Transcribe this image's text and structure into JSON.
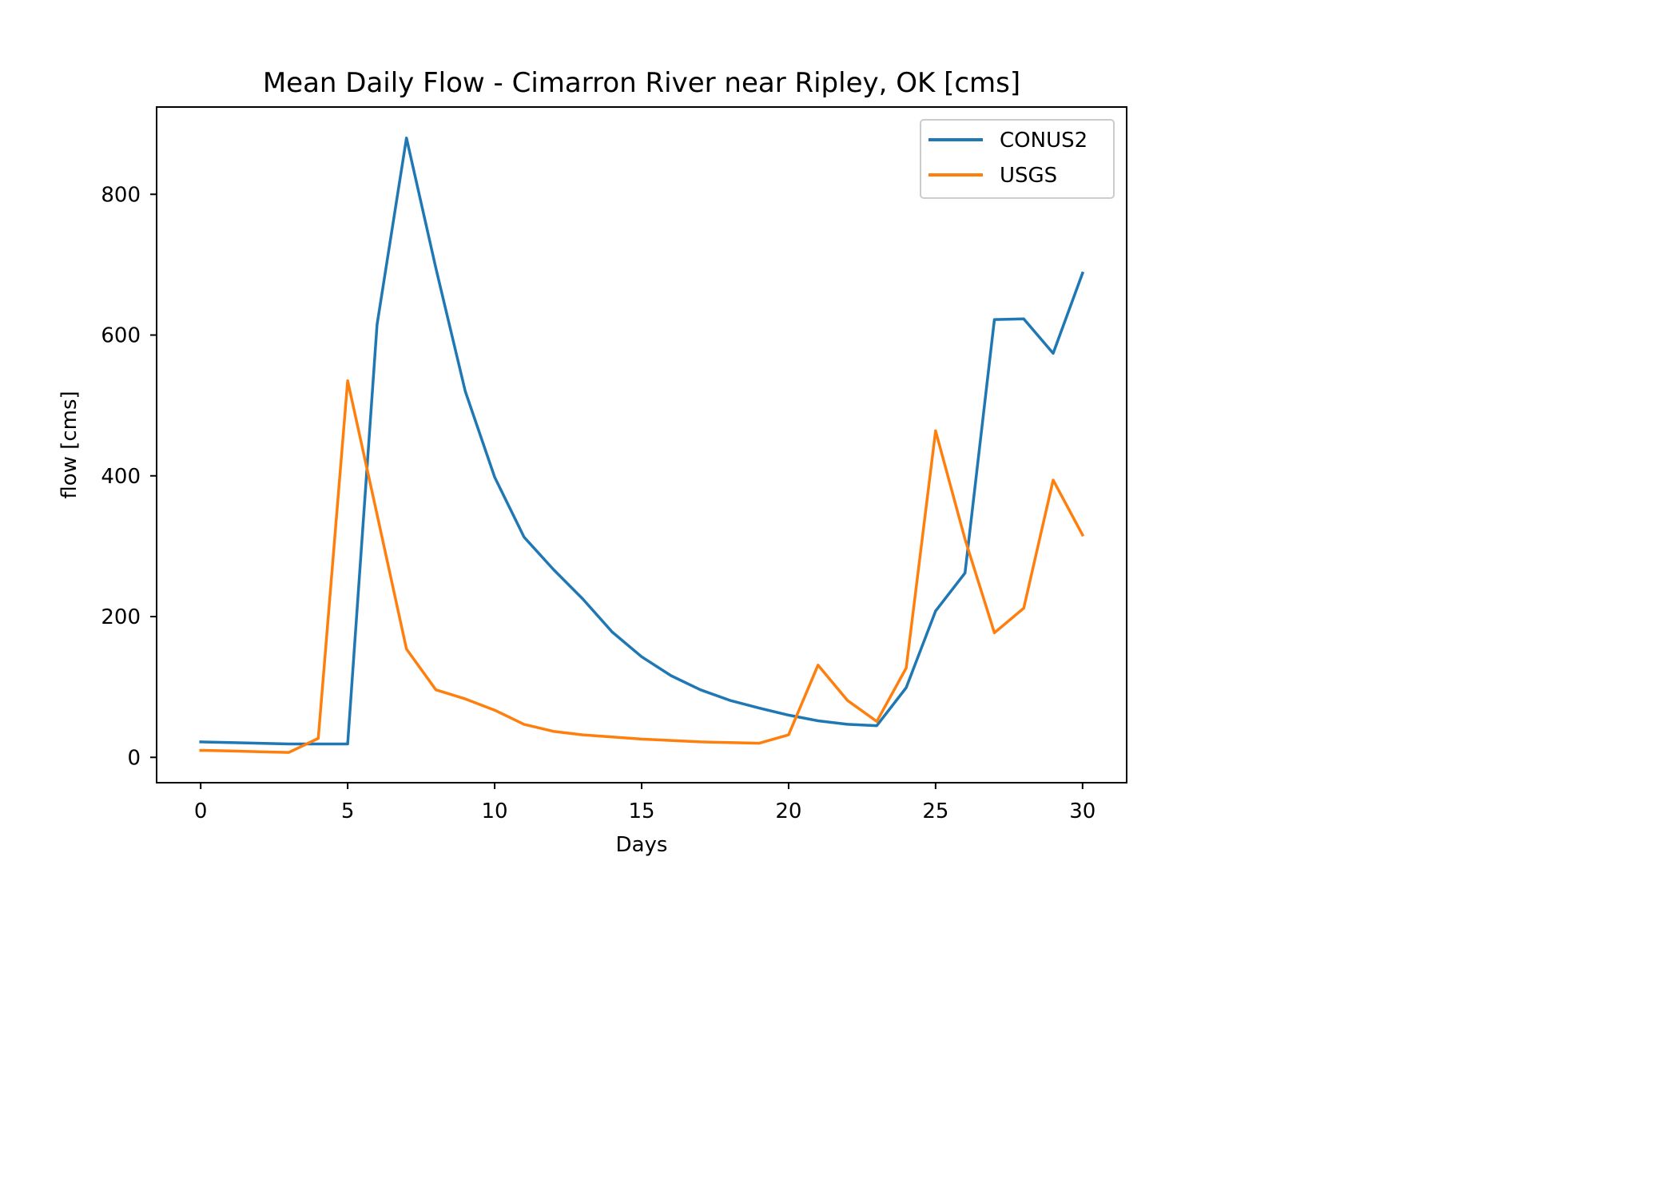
{
  "chart_data": {
    "type": "line",
    "title": "Mean Daily Flow - Cimarron River near Ripley, OK [cms]",
    "xlabel": "Days",
    "ylabel": "flow [cms]",
    "xlim": [
      -1.5,
      31.5
    ],
    "ylim": [
      -36,
      924
    ],
    "xticks": [
      0,
      5,
      10,
      15,
      20,
      25,
      30
    ],
    "yticks": [
      0,
      200,
      400,
      600,
      800
    ],
    "grid": false,
    "legend_position": "upper right",
    "x": [
      0,
      1,
      2,
      3,
      4,
      5,
      6,
      7,
      8,
      9,
      10,
      11,
      12,
      13,
      14,
      15,
      16,
      17,
      18,
      19,
      20,
      21,
      22,
      23,
      24,
      25,
      26,
      27,
      28,
      29,
      30
    ],
    "series": [
      {
        "name": "CONUS2",
        "color": "#1f77b4",
        "values": [
          22,
          21,
          20,
          19,
          19,
          19,
          615,
          880,
          695,
          520,
          398,
          313,
          267,
          225,
          178,
          143,
          116,
          96,
          81,
          70,
          60,
          52,
          47,
          45,
          99,
          208,
          262,
          622,
          623,
          574,
          688
        ]
      },
      {
        "name": "USGS",
        "color": "#ff7f0e",
        "values": [
          10,
          9,
          8,
          7,
          27,
          535,
          345,
          154,
          96,
          83,
          67,
          47,
          37,
          32,
          29,
          26,
          24,
          22,
          21,
          20,
          32,
          131,
          81,
          51,
          127,
          464,
          310,
          177,
          212,
          394,
          316
        ]
      }
    ]
  }
}
